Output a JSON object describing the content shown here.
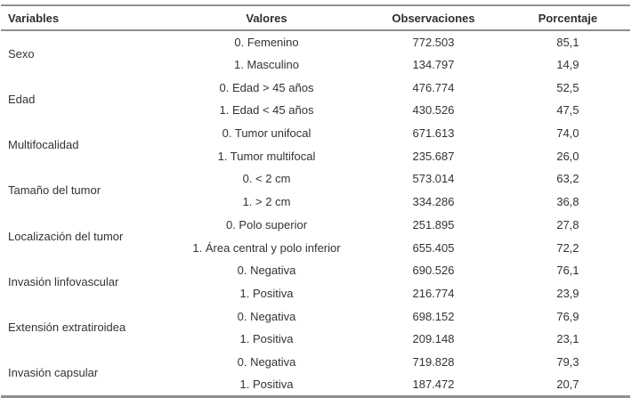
{
  "meta": {
    "line_color": "#8f8f8f",
    "text_color": "#333333",
    "background_color": "#ffffff",
    "language": "es"
  },
  "table": {
    "headers": [
      "Variables",
      "Valores",
      "Observaciones",
      "Porcentaje"
    ],
    "groups": [
      {
        "variable": "Sexo",
        "rows": [
          {
            "valor": "0. Femenino",
            "obs": "772.503",
            "pct": "85,1"
          },
          {
            "valor": "1. Masculino",
            "obs": "134.797",
            "pct": "14,9"
          }
        ]
      },
      {
        "variable": "Edad",
        "rows": [
          {
            "valor": "0. Edad > 45 años",
            "obs": "476.774",
            "pct": "52,5"
          },
          {
            "valor": "1. Edad < 45 años",
            "obs": "430.526",
            "pct": "47,5"
          }
        ]
      },
      {
        "variable": "Multifocalidad",
        "rows": [
          {
            "valor": "0. Tumor unifocal",
            "obs": "671.613",
            "pct": "74,0"
          },
          {
            "valor": "1. Tumor multifocal",
            "obs": "235.687",
            "pct": "26,0"
          }
        ]
      },
      {
        "variable": "Tamaño del tumor",
        "rows": [
          {
            "valor": "0. < 2 cm",
            "obs": "573.014",
            "pct": "63,2"
          },
          {
            "valor": "1. > 2 cm",
            "obs": "334.286",
            "pct": "36,8"
          }
        ]
      },
      {
        "variable": "Localización del tumor",
        "rows": [
          {
            "valor": "0. Polo superior",
            "obs": "251.895",
            "pct": "27,8"
          },
          {
            "valor": "1. Área central y polo inferior",
            "obs": "655.405",
            "pct": "72,2"
          }
        ]
      },
      {
        "variable": "Invasión linfovascular",
        "rows": [
          {
            "valor": "0. Negativa",
            "obs": "690.526",
            "pct": "76,1"
          },
          {
            "valor": "1. Positiva",
            "obs": "216.774",
            "pct": "23,9"
          }
        ]
      },
      {
        "variable": "Extensión extratiroidea",
        "rows": [
          {
            "valor": "0. Negativa",
            "obs": "698.152",
            "pct": "76,9"
          },
          {
            "valor": "1. Positiva",
            "obs": "209.148",
            "pct": "23,1"
          }
        ]
      },
      {
        "variable": "Invasión capsular",
        "rows": [
          {
            "valor": "0. Negativa",
            "obs": "719.828",
            "pct": "79,3"
          },
          {
            "valor": "1. Positiva",
            "obs": "187.472",
            "pct": "20,7"
          }
        ]
      }
    ]
  }
}
